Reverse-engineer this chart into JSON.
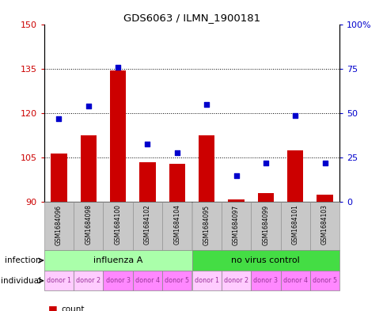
{
  "title": "GDS6063 / ILMN_1900181",
  "samples": [
    "GSM1684096",
    "GSM1684098",
    "GSM1684100",
    "GSM1684102",
    "GSM1684104",
    "GSM1684095",
    "GSM1684097",
    "GSM1684099",
    "GSM1684101",
    "GSM1684103"
  ],
  "counts": [
    106.5,
    112.5,
    134.5,
    103.5,
    103.0,
    112.5,
    91.0,
    93.0,
    107.5,
    92.5
  ],
  "percentiles": [
    47,
    54,
    76,
    33,
    28,
    55,
    15,
    22,
    49,
    22
  ],
  "ylim_left": [
    90,
    150
  ],
  "ylim_right": [
    0,
    100
  ],
  "yticks_left": [
    90,
    105,
    120,
    135,
    150
  ],
  "yticks_right": [
    0,
    25,
    50,
    75,
    100
  ],
  "ytick_labels_left": [
    "90",
    "105",
    "120",
    "135",
    "150"
  ],
  "ytick_labels_right": [
    "0",
    "25",
    "50",
    "75",
    "100%"
  ],
  "infection_groups": [
    {
      "label": "influenza A",
      "start": 0,
      "end": 5,
      "color": "#AAFFAA"
    },
    {
      "label": "no virus control",
      "start": 5,
      "end": 10,
      "color": "#44DD44"
    }
  ],
  "individual_labels": [
    "donor 1",
    "donor 2",
    "donor 3",
    "donor 4",
    "donor 5",
    "donor 1",
    "donor 2",
    "donor 3",
    "donor 4",
    "donor 5"
  ],
  "individual_colors_alt": [
    "#FFCCFF",
    "#FFCCFF",
    "#FF88FF",
    "#FF88FF",
    "#FF88FF",
    "#FFCCFF",
    "#FFCCFF",
    "#FF88FF",
    "#FF88FF",
    "#FF88FF"
  ],
  "bar_color": "#CC0000",
  "dot_color": "#0000CC",
  "bar_width": 0.55,
  "tick_label_color_left": "#CC0000",
  "tick_label_color_right": "#0000CC",
  "sample_bg_color": "#C8C8C8",
  "gridline_ticks": [
    105,
    120,
    135
  ]
}
